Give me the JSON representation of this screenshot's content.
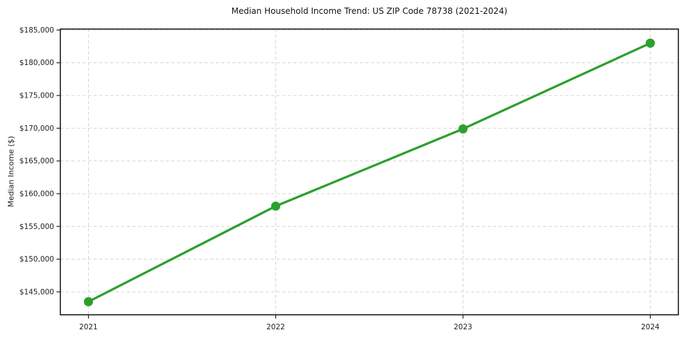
{
  "chart_data": {
    "type": "line",
    "title": "Median Household Income Trend: US ZIP Code 78738 (2021-2024)",
    "xlabel": "",
    "ylabel": "Median Income ($)",
    "x": [
      2021,
      2022,
      2023,
      2024
    ],
    "x_tick_labels": [
      "2021",
      "2022",
      "2023",
      "2024"
    ],
    "values": [
      143500,
      158100,
      169900,
      183000
    ],
    "y_ticks": [
      145000,
      150000,
      155000,
      160000,
      165000,
      170000,
      175000,
      180000,
      185000
    ],
    "y_tick_labels": [
      "$145,000",
      "$150,000",
      "$155,000",
      "$160,000",
      "$165,000",
      "$170,000",
      "$175,000",
      "$180,000",
      "$185,000"
    ],
    "xlim": [
      2020.85,
      2024.15
    ],
    "ylim": [
      141500,
      185150
    ],
    "grid": "dashed",
    "legend": "none",
    "line_color": "#2ca02c",
    "marker": "circle",
    "grid_color": "#d3d3d3",
    "spine_color": "#0d0d0d",
    "tick_color": "#1c1c1c",
    "background_color": "#ffffff"
  }
}
